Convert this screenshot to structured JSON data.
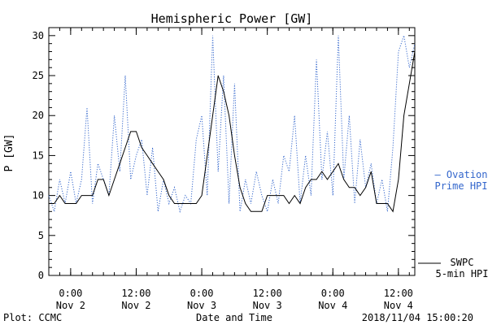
{
  "chart_data": {
    "type": "line",
    "title": "Hemispheric Power [GW]",
    "ylabel": "P [GW]",
    "xlabel": "Date and Time",
    "ylim": [
      0,
      31
    ],
    "xlim": [
      "2018-11-01 20:00",
      "2018-11-04 15:00"
    ],
    "yticks": [
      "0",
      "5",
      "10",
      "15",
      "20",
      "25",
      "30"
    ],
    "xticks": [
      {
        "x": "2018-11-02 00:00",
        "line1": "0:00",
        "line2": "Nov 2"
      },
      {
        "x": "2018-11-02 12:00",
        "line1": "12:00",
        "line2": "Nov 2"
      },
      {
        "x": "2018-11-03 00:00",
        "line1": "0:00",
        "line2": "Nov 3"
      },
      {
        "x": "2018-11-03 12:00",
        "line1": "12:00",
        "line2": "Nov 3"
      },
      {
        "x": "2018-11-04 00:00",
        "line1": "0:00",
        "line2": "Nov 4"
      },
      {
        "x": "2018-11-04 12:00",
        "line1": "12:00",
        "line2": "Nov 4"
      }
    ],
    "grid": false,
    "series": [
      {
        "name": "SWPC 5-min HPI",
        "legend_lines": [
          "SWPC",
          "5-min HPI"
        ],
        "color": "#000000",
        "style": "solid",
        "points": [
          [
            "2018-11-01 20:00",
            9
          ],
          [
            "2018-11-01 21:00",
            9
          ],
          [
            "2018-11-01 22:00",
            10
          ],
          [
            "2018-11-01 23:00",
            9
          ],
          [
            "2018-11-02 00:00",
            9
          ],
          [
            "2018-11-02 01:00",
            9
          ],
          [
            "2018-11-02 02:00",
            10
          ],
          [
            "2018-11-02 03:00",
            10
          ],
          [
            "2018-11-02 04:00",
            10
          ],
          [
            "2018-11-02 05:00",
            12
          ],
          [
            "2018-11-02 06:00",
            12
          ],
          [
            "2018-11-02 07:00",
            10
          ],
          [
            "2018-11-02 08:00",
            12
          ],
          [
            "2018-11-02 09:00",
            14
          ],
          [
            "2018-11-02 10:00",
            16
          ],
          [
            "2018-11-02 11:00",
            18
          ],
          [
            "2018-11-02 12:00",
            18
          ],
          [
            "2018-11-02 13:00",
            16
          ],
          [
            "2018-11-02 14:00",
            15
          ],
          [
            "2018-11-02 15:00",
            14
          ],
          [
            "2018-11-02 16:00",
            13
          ],
          [
            "2018-11-02 17:00",
            12
          ],
          [
            "2018-11-02 18:00",
            10
          ],
          [
            "2018-11-02 19:00",
            9
          ],
          [
            "2018-11-02 20:00",
            9
          ],
          [
            "2018-11-02 21:00",
            9
          ],
          [
            "2018-11-02 22:00",
            9
          ],
          [
            "2018-11-02 23:00",
            9
          ],
          [
            "2018-11-03 00:00",
            10
          ],
          [
            "2018-11-03 01:00",
            15
          ],
          [
            "2018-11-03 02:00",
            20
          ],
          [
            "2018-11-03 03:00",
            25
          ],
          [
            "2018-11-03 04:00",
            23
          ],
          [
            "2018-11-03 05:00",
            20
          ],
          [
            "2018-11-03 06:00",
            15
          ],
          [
            "2018-11-03 07:00",
            11
          ],
          [
            "2018-11-03 08:00",
            9
          ],
          [
            "2018-11-03 09:00",
            8
          ],
          [
            "2018-11-03 10:00",
            8
          ],
          [
            "2018-11-03 11:00",
            8
          ],
          [
            "2018-11-03 12:00",
            10
          ],
          [
            "2018-11-03 13:00",
            10
          ],
          [
            "2018-11-03 14:00",
            10
          ],
          [
            "2018-11-03 15:00",
            10
          ],
          [
            "2018-11-03 16:00",
            9
          ],
          [
            "2018-11-03 17:00",
            10
          ],
          [
            "2018-11-03 18:00",
            9
          ],
          [
            "2018-11-03 19:00",
            11
          ],
          [
            "2018-11-03 20:00",
            12
          ],
          [
            "2018-11-03 21:00",
            12
          ],
          [
            "2018-11-03 22:00",
            13
          ],
          [
            "2018-11-03 23:00",
            12
          ],
          [
            "2018-11-04 00:00",
            13
          ],
          [
            "2018-11-04 01:00",
            14
          ],
          [
            "2018-11-04 02:00",
            12
          ],
          [
            "2018-11-04 03:00",
            11
          ],
          [
            "2018-11-04 04:00",
            11
          ],
          [
            "2018-11-04 05:00",
            10
          ],
          [
            "2018-11-04 06:00",
            11
          ],
          [
            "2018-11-04 07:00",
            13
          ],
          [
            "2018-11-04 08:00",
            9
          ],
          [
            "2018-11-04 09:00",
            9
          ],
          [
            "2018-11-04 10:00",
            9
          ],
          [
            "2018-11-04 11:00",
            8
          ],
          [
            "2018-11-04 12:00",
            12
          ],
          [
            "2018-11-04 13:00",
            20
          ],
          [
            "2018-11-04 14:00",
            24
          ],
          [
            "2018-11-04 15:00",
            28
          ]
        ]
      },
      {
        "name": "Ovation Prime HPI",
        "legend_lines": [
          "– Ovation",
          "Prime HPI"
        ],
        "color": "#3366cc",
        "style": "dotted",
        "points": [
          [
            "2018-11-01 20:00",
            10
          ],
          [
            "2018-11-01 21:00",
            8
          ],
          [
            "2018-11-01 22:00",
            12
          ],
          [
            "2018-11-01 23:00",
            9
          ],
          [
            "2018-11-02 00:00",
            13
          ],
          [
            "2018-11-02 01:00",
            9
          ],
          [
            "2018-11-02 02:00",
            12
          ],
          [
            "2018-11-02 03:00",
            21
          ],
          [
            "2018-11-02 04:00",
            9
          ],
          [
            "2018-11-02 05:00",
            14
          ],
          [
            "2018-11-02 06:00",
            12
          ],
          [
            "2018-11-02 07:00",
            10
          ],
          [
            "2018-11-02 08:00",
            20
          ],
          [
            "2018-11-02 09:00",
            13
          ],
          [
            "2018-11-02 10:00",
            25
          ],
          [
            "2018-11-02 11:00",
            12
          ],
          [
            "2018-11-02 12:00",
            15
          ],
          [
            "2018-11-02 13:00",
            17
          ],
          [
            "2018-11-02 14:00",
            10
          ],
          [
            "2018-11-02 15:00",
            16
          ],
          [
            "2018-11-02 16:00",
            8
          ],
          [
            "2018-11-02 17:00",
            12
          ],
          [
            "2018-11-02 18:00",
            9
          ],
          [
            "2018-11-02 19:00",
            11
          ],
          [
            "2018-11-02 20:00",
            8
          ],
          [
            "2018-11-02 21:00",
            10
          ],
          [
            "2018-11-02 22:00",
            9
          ],
          [
            "2018-11-02 23:00",
            17
          ],
          [
            "2018-11-03 00:00",
            20
          ],
          [
            "2018-11-03 01:00",
            10
          ],
          [
            "2018-11-03 02:00",
            30
          ],
          [
            "2018-11-03 03:00",
            13
          ],
          [
            "2018-11-03 04:00",
            25
          ],
          [
            "2018-11-03 05:00",
            9
          ],
          [
            "2018-11-03 06:00",
            24
          ],
          [
            "2018-11-03 07:00",
            8
          ],
          [
            "2018-11-03 08:00",
            12
          ],
          [
            "2018-11-03 09:00",
            9
          ],
          [
            "2018-11-03 10:00",
            13
          ],
          [
            "2018-11-03 11:00",
            10
          ],
          [
            "2018-11-03 12:00",
            8
          ],
          [
            "2018-11-03 13:00",
            12
          ],
          [
            "2018-11-03 14:00",
            9
          ],
          [
            "2018-11-03 15:00",
            15
          ],
          [
            "2018-11-03 16:00",
            13
          ],
          [
            "2018-11-03 17:00",
            20
          ],
          [
            "2018-11-03 18:00",
            9
          ],
          [
            "2018-11-03 19:00",
            15
          ],
          [
            "2018-11-03 20:00",
            10
          ],
          [
            "2018-11-03 21:00",
            27
          ],
          [
            "2018-11-03 22:00",
            12
          ],
          [
            "2018-11-03 23:00",
            18
          ],
          [
            "2018-11-04 00:00",
            10
          ],
          [
            "2018-11-04 01:00",
            30
          ],
          [
            "2018-11-04 02:00",
            12
          ],
          [
            "2018-11-04 03:00",
            20
          ],
          [
            "2018-11-04 04:00",
            9
          ],
          [
            "2018-11-04 05:00",
            17
          ],
          [
            "2018-11-04 06:00",
            11
          ],
          [
            "2018-11-04 07:00",
            14
          ],
          [
            "2018-11-04 08:00",
            9
          ],
          [
            "2018-11-04 09:00",
            12
          ],
          [
            "2018-11-04 10:00",
            8
          ],
          [
            "2018-11-04 11:00",
            16
          ],
          [
            "2018-11-04 12:00",
            28
          ],
          [
            "2018-11-04 13:00",
            30
          ],
          [
            "2018-11-04 14:00",
            26
          ],
          [
            "2018-11-04 15:00",
            29
          ]
        ]
      }
    ]
  },
  "footer": {
    "left": "Plot: CCMC",
    "center": "Date and Time",
    "right": "2018/11/04 15:00:20"
  }
}
